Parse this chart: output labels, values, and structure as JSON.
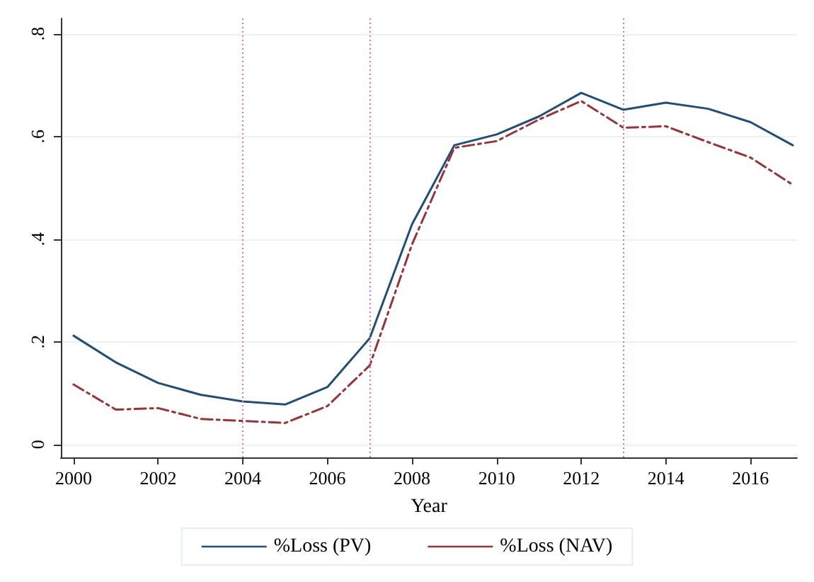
{
  "chart_data": {
    "type": "line",
    "xlabel": "Year",
    "x": [
      2000,
      2001,
      2002,
      2003,
      2004,
      2005,
      2006,
      2007,
      2008,
      2009,
      2010,
      2011,
      2012,
      2013,
      2014,
      2015,
      2016,
      2017
    ],
    "series": [
      {
        "name": "%Loss (PV)",
        "color": "#1f4e79",
        "line_style": "solid",
        "values": [
          0.212,
          0.16,
          0.12,
          0.097,
          0.084,
          0.078,
          0.112,
          0.207,
          0.429,
          0.583,
          0.604,
          0.639,
          0.685,
          0.652,
          0.666,
          0.654,
          0.628,
          0.583
        ]
      },
      {
        "name": "%Loss (NAV)",
        "color": "#9b3237",
        "line_style": "dashed",
        "values": [
          0.117,
          0.068,
          0.071,
          0.05,
          0.046,
          0.042,
          0.075,
          0.154,
          0.39,
          0.578,
          0.591,
          0.633,
          0.669,
          0.617,
          0.62,
          0.589,
          0.559,
          0.506
        ]
      }
    ],
    "xlim": [
      1999.7,
      2017.1
    ],
    "xticks": [
      2000,
      2002,
      2004,
      2006,
      2008,
      2010,
      2012,
      2014,
      2016
    ],
    "ylim": [
      -0.025,
      0.83
    ],
    "yticks": [
      {
        "value": 0,
        "label": "0"
      },
      {
        "value": 0.2,
        "label": ".2"
      },
      {
        "value": 0.4,
        "label": ".4"
      },
      {
        "value": 0.6,
        "label": ".6"
      },
      {
        "value": 0.8,
        "label": ".8"
      }
    ],
    "ref_lines": [
      {
        "axis": "x",
        "value": 2004,
        "color": "#f0708a",
        "line_style": "dotted"
      },
      {
        "axis": "x",
        "value": 2007,
        "color": "#f0708a",
        "line_style": "dotted"
      },
      {
        "axis": "x",
        "value": 2013,
        "color": "#f0708a",
        "line_style": "dotted"
      }
    ],
    "grid": "y",
    "legend": "bottom",
    "marker": "none"
  }
}
